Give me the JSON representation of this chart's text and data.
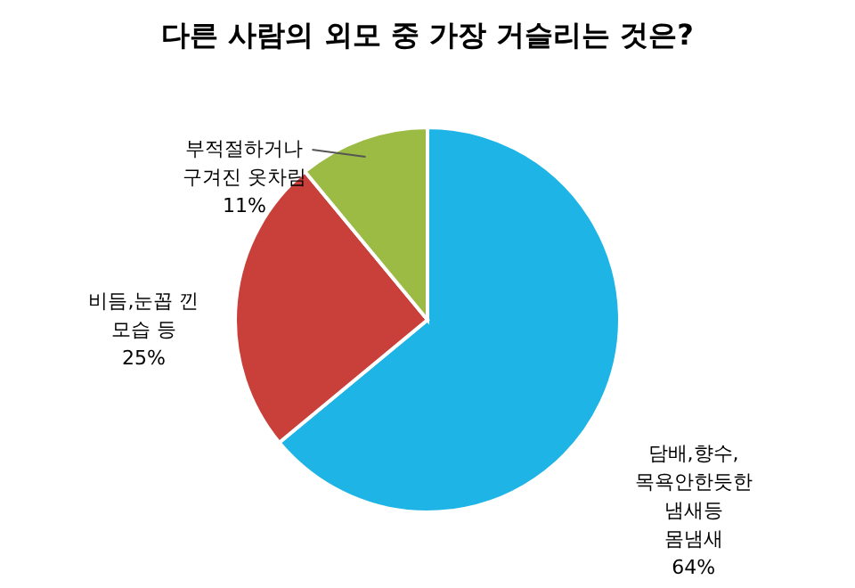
{
  "chart_data": {
    "type": "pie",
    "title": "다른 사람의 외모 중 가장 거슬리는 것은?",
    "categories": [
      "담배,향수,\n목욕안한듯한\n냄새등\n몸냄새",
      "비듬,눈꼽 낀\n모습 등",
      "부적절하거나\n구겨진 옷차림"
    ],
    "values": [
      64,
      25,
      11
    ],
    "value_labels": [
      "64%",
      "25%",
      "11%"
    ],
    "colors": [
      "#1fb4e6",
      "#c9403b",
      "#9bbb45"
    ]
  }
}
